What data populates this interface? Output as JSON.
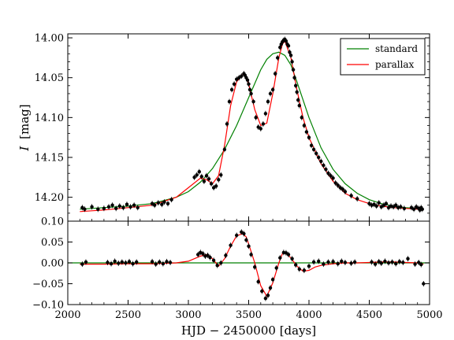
{
  "chart_data": [
    {
      "type": "scatter",
      "panel": "light-curve",
      "xlabel": "",
      "ylabel_symbol": "I",
      "ylabel_unit": "[mag]",
      "xlim": [
        2000,
        5000
      ],
      "ylim": [
        14.23,
        13.995
      ],
      "y_inverted": true,
      "y_ticks": [
        14.0,
        14.05,
        14.1,
        14.15,
        14.2
      ],
      "y_tick_labels": [
        "14.00",
        "14.05",
        "14.10",
        "14.15",
        "14.20"
      ],
      "y_bottom_tick_label": "0.10",
      "grid": false,
      "legend": {
        "placement": "top-right",
        "entries": [
          {
            "label": "standard",
            "color": "#008000"
          },
          {
            "label": "parallax",
            "color": "#ff0000"
          }
        ]
      },
      "series": [
        {
          "name": "standard",
          "style": "line",
          "color": "#008000",
          "x": [
            2100,
            2300,
            2500,
            2700,
            2900,
            3000,
            3100,
            3200,
            3300,
            3400,
            3500,
            3600,
            3650,
            3700,
            3750,
            3800,
            3850,
            3900,
            4000,
            4100,
            4200,
            4300,
            4400,
            4500,
            4600,
            4700,
            4800,
            4900,
            4950
          ],
          "y": [
            14.215,
            14.213,
            14.211,
            14.208,
            14.2,
            14.193,
            14.181,
            14.164,
            14.14,
            14.11,
            14.075,
            14.04,
            14.027,
            14.02,
            14.018,
            14.022,
            14.034,
            14.055,
            14.1,
            14.138,
            14.165,
            14.183,
            14.195,
            14.203,
            14.208,
            14.211,
            14.213,
            14.214,
            14.215
          ]
        },
        {
          "name": "parallax",
          "style": "line",
          "color": "#ff0000",
          "x": [
            2100,
            2300,
            2500,
            2700,
            2900,
            3000,
            3100,
            3150,
            3200,
            3250,
            3300,
            3350,
            3400,
            3450,
            3480,
            3500,
            3550,
            3600,
            3650,
            3700,
            3750,
            3780,
            3800,
            3850,
            3900,
            3950,
            4000,
            4100,
            4200,
            4300,
            4400,
            4500,
            4600,
            4700,
            4800,
            4900,
            4950
          ],
          "y": [
            14.218,
            14.216,
            14.213,
            14.21,
            14.2,
            14.188,
            14.176,
            14.178,
            14.183,
            14.173,
            14.135,
            14.085,
            14.055,
            14.046,
            14.048,
            14.058,
            14.09,
            14.11,
            14.107,
            14.07,
            14.025,
            14.008,
            14.004,
            14.025,
            14.065,
            14.1,
            14.125,
            14.158,
            14.18,
            14.195,
            14.203,
            14.208,
            14.211,
            14.213,
            14.214,
            14.215,
            14.216
          ]
        },
        {
          "name": "",
          "style": "points",
          "color": "#000000",
          "x": [
            2120,
            2140,
            2200,
            2250,
            2300,
            2340,
            2370,
            2400,
            2430,
            2460,
            2490,
            2520,
            2550,
            2580,
            2700,
            2720,
            2750,
            2780,
            2800,
            2830,
            2860,
            3050,
            3070,
            3090,
            3110,
            3130,
            3150,
            3170,
            3190,
            3210,
            3230,
            3250,
            3270,
            3300,
            3320,
            3340,
            3360,
            3380,
            3400,
            3420,
            3440,
            3460,
            3470,
            3480,
            3490,
            3500,
            3510,
            3520,
            3540,
            3560,
            3580,
            3600,
            3620,
            3640,
            3660,
            3680,
            3700,
            3720,
            3740,
            3760,
            3770,
            3780,
            3790,
            3800,
            3810,
            3820,
            3830,
            3840,
            3850,
            3860,
            3870,
            3880,
            3890,
            3900,
            3910,
            3920,
            3940,
            3960,
            3980,
            4000,
            4020,
            4040,
            4060,
            4080,
            4100,
            4120,
            4140,
            4160,
            4180,
            4200,
            4220,
            4240,
            4260,
            4280,
            4300,
            4350,
            4400,
            4500,
            4520,
            4540,
            4560,
            4580,
            4600,
            4620,
            4640,
            4660,
            4680,
            4700,
            4720,
            4740,
            4760,
            4790,
            4850,
            4870,
            4890,
            4910,
            4920,
            4930,
            4940
          ],
          "y": [
            14.213,
            14.215,
            14.212,
            14.215,
            14.214,
            14.212,
            14.21,
            14.214,
            14.211,
            14.213,
            14.209,
            14.212,
            14.21,
            14.213,
            14.208,
            14.21,
            14.207,
            14.209,
            14.206,
            14.208,
            14.203,
            14.175,
            14.172,
            14.168,
            14.174,
            14.18,
            14.173,
            14.177,
            14.183,
            14.188,
            14.186,
            14.178,
            14.172,
            14.14,
            14.108,
            14.08,
            14.065,
            14.058,
            14.052,
            14.05,
            14.048,
            14.045,
            14.047,
            14.05,
            14.053,
            14.058,
            14.065,
            14.07,
            14.08,
            14.1,
            14.112,
            14.114,
            14.108,
            14.095,
            14.08,
            14.07,
            14.065,
            14.045,
            14.025,
            14.012,
            14.008,
            14.005,
            14.003,
            14.002,
            14.004,
            14.008,
            14.01,
            14.018,
            14.022,
            14.03,
            14.04,
            14.05,
            14.06,
            14.068,
            14.078,
            14.085,
            14.1,
            14.11,
            14.118,
            14.125,
            14.135,
            14.14,
            14.145,
            14.15,
            14.155,
            14.16,
            14.165,
            14.17,
            14.173,
            14.176,
            14.182,
            14.185,
            14.188,
            14.19,
            14.193,
            14.198,
            14.202,
            14.208,
            14.21,
            14.209,
            14.211,
            14.207,
            14.212,
            14.21,
            14.208,
            14.213,
            14.211,
            14.212,
            14.21,
            14.213,
            14.212,
            14.214,
            14.213,
            14.215,
            14.212,
            14.214,
            14.216,
            14.213,
            14.215
          ]
        }
      ]
    },
    {
      "type": "scatter",
      "panel": "residuals",
      "xlabel": "HJD − 2450000 [days]",
      "ylabel": "",
      "xlim": [
        2000,
        5000
      ],
      "ylim": [
        -0.1,
        0.1
      ],
      "x_ticks": [
        2000,
        2500,
        3000,
        3500,
        4000,
        4500,
        5000
      ],
      "x_tick_labels": [
        "2000",
        "2500",
        "3000",
        "3500",
        "4000",
        "4500",
        "5000"
      ],
      "y_ticks": [
        0.05,
        0.0,
        -0.05,
        -0.1
      ],
      "y_tick_labels": [
        "0.05",
        "0.00",
        "−0.05",
        "−0.10"
      ],
      "grid": false,
      "series": [
        {
          "name": "",
          "style": "line",
          "color": "#008000",
          "x": [
            2000,
            5000
          ],
          "y": [
            0,
            0
          ]
        },
        {
          "name": "",
          "style": "line",
          "color": "#ff0000",
          "x": [
            2100,
            2300,
            2500,
            2700,
            2900,
            3000,
            3050,
            3100,
            3150,
            3200,
            3250,
            3300,
            3350,
            3400,
            3450,
            3480,
            3500,
            3550,
            3600,
            3650,
            3700,
            3750,
            3780,
            3800,
            3850,
            3900,
            3950,
            4000,
            4050,
            4100,
            4200,
            4300,
            4400,
            4500,
            4600,
            4700,
            4800,
            4900,
            4950
          ],
          "y": [
            -0.003,
            -0.003,
            -0.002,
            -0.002,
            0.0,
            0.004,
            0.01,
            0.016,
            0.02,
            0.01,
            -0.008,
            0.01,
            0.04,
            0.065,
            0.07,
            0.062,
            0.045,
            0.0,
            -0.055,
            -0.08,
            -0.048,
            0.0,
            0.022,
            0.025,
            0.012,
            -0.008,
            -0.02,
            -0.018,
            -0.01,
            -0.006,
            -0.002,
            0.0,
            0.0,
            0.001,
            0.002,
            0.002,
            0.001,
            0.0,
            -0.003
          ]
        },
        {
          "name": "",
          "style": "points",
          "color": "#000000",
          "x": [
            2120,
            2150,
            2330,
            2360,
            2390,
            2420,
            2450,
            2480,
            2510,
            2540,
            2570,
            2700,
            2730,
            2760,
            2790,
            2820,
            2850,
            3080,
            3100,
            3120,
            3140,
            3160,
            3180,
            3210,
            3240,
            3270,
            3310,
            3350,
            3400,
            3440,
            3460,
            3480,
            3500,
            3520,
            3550,
            3580,
            3610,
            3640,
            3660,
            3680,
            3700,
            3730,
            3760,
            3790,
            3810,
            3830,
            3860,
            3890,
            3920,
            3960,
            4000,
            4040,
            4080,
            4120,
            4160,
            4200,
            4240,
            4270,
            4300,
            4350,
            4380,
            4520,
            4550,
            4580,
            4600,
            4630,
            4660,
            4690,
            4720,
            4750,
            4780,
            4820,
            4880,
            4910,
            4930,
            4950
          ],
          "y": [
            -0.003,
            0.002,
            0.001,
            -0.002,
            0.004,
            -0.001,
            0.002,
            0.0,
            0.003,
            -0.002,
            0.002,
            0.003,
            -0.003,
            0.002,
            -0.002,
            0.003,
            0.001,
            0.02,
            0.025,
            0.022,
            0.016,
            0.018,
            0.013,
            0.006,
            -0.006,
            0.0,
            0.018,
            0.042,
            0.066,
            0.074,
            0.07,
            0.055,
            0.04,
            0.02,
            -0.01,
            -0.045,
            -0.068,
            -0.085,
            -0.078,
            -0.06,
            -0.04,
            -0.012,
            0.012,
            0.025,
            0.024,
            0.02,
            0.01,
            -0.005,
            -0.015,
            -0.018,
            -0.008,
            0.002,
            0.004,
            -0.003,
            0.002,
            0.003,
            -0.002,
            0.004,
            0.001,
            -0.001,
            0.002,
            0.002,
            -0.003,
            0.003,
            -0.001,
            0.004,
            0.0,
            0.002,
            -0.002,
            0.003,
            0.001,
            0.01,
            -0.003,
            0.001,
            -0.004,
            -0.05
          ]
        }
      ]
    }
  ]
}
